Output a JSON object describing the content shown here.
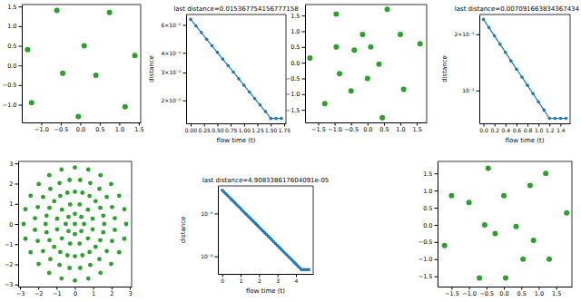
{
  "chart_data": [
    {
      "type": "scatter",
      "color": "#2ca02c",
      "marker": "circle",
      "x": [
        -1.35,
        -0.6,
        -1.25,
        -0.45,
        -0.05,
        0.1,
        0.4,
        0.75,
        1.15,
        1.4
      ],
      "values": [
        0.4,
        1.4,
        -0.95,
        -0.2,
        -1.3,
        0.5,
        -0.25,
        1.35,
        -1.05,
        0.25
      ],
      "xlim": [
        -1.5,
        1.55
      ],
      "ylim": [
        -1.45,
        1.55
      ],
      "xticks": [
        {
          "value": -1.0,
          "label": "−1.0"
        },
        {
          "value": -0.5,
          "label": "−0.5"
        },
        {
          "value": 0,
          "label": "0.0"
        },
        0.5,
        {
          "value": 1.0,
          "label": "1.0"
        },
        1.5
      ],
      "yticks": [
        {
          "value": -1.0,
          "label": "−1.0"
        },
        {
          "value": -0.5,
          "label": "−0.5"
        },
        {
          "value": 0,
          "label": "0.0"
        },
        0.5,
        {
          "value": 1.0,
          "label": "1.0"
        },
        1.5
      ]
    },
    {
      "type": "line",
      "title": "last distance=0.015367754156777158",
      "xlabel": "flow time (t)",
      "ylabel": "distance",
      "color": "#1f77b4",
      "marker": "circle",
      "log": "y",
      "x": [
        0,
        0.1,
        0.2,
        0.3,
        0.4,
        0.5,
        0.6,
        0.7,
        0.8,
        0.9,
        1.0,
        1.1,
        1.2,
        1.3,
        1.4,
        1.5,
        1.6,
        1.7
      ],
      "values": [
        0.065,
        0.0591,
        0.0537,
        0.0487,
        0.0443,
        0.0402,
        0.0365,
        0.0332,
        0.0302,
        0.0274,
        0.0249,
        0.0226,
        0.0205,
        0.0187,
        0.017,
        0.015367754156777158,
        0.015367754156777158,
        0.015367754156777158
      ],
      "xlim": [
        -0.085,
        1.785
      ],
      "ylim": [
        0.01432,
        0.0698
      ],
      "xticks": [
        {
          "value": 0,
          "label": "0.00"
        },
        0.25,
        {
          "value": 0.5,
          "label": "0.50"
        },
        0.75,
        {
          "value": 1.0,
          "label": "1.00"
        },
        1.25,
        {
          "value": 1.5,
          "label": "1.50"
        },
        1.75
      ],
      "yticks": [
        {
          "value": 0.02,
          "label": "2×10⁻²"
        },
        {
          "value": 0.03,
          "label": "3×10⁻²"
        },
        {
          "value": 0.04,
          "label": "4×10⁻²"
        },
        {
          "value": 0.06,
          "label": "6×10⁻²"
        }
      ]
    },
    {
      "type": "scatter",
      "color": "#2ca02c",
      "marker": "circle",
      "x": [
        -1.75,
        -1.3,
        -0.95,
        -0.95,
        -0.85,
        -0.5,
        -0.4,
        -0.15,
        0.0,
        0.1,
        0.35,
        0.45,
        0.6,
        1.0,
        1.1,
        1.6
      ],
      "values": [
        0.15,
        -1.3,
        1.55,
        0.5,
        -0.35,
        -0.9,
        0.4,
        0.9,
        -0.5,
        0.5,
        -0.05,
        -1.75,
        1.7,
        0.9,
        -0.85,
        0.6
      ],
      "xlim": [
        -1.9,
        1.8
      ],
      "ylim": [
        -1.9,
        1.85
      ],
      "xticks": [
        {
          "value": -1.5,
          "label": "−1.5"
        },
        {
          "value": -1.0,
          "label": "−1.0"
        },
        {
          "value": -0.5,
          "label": "−0.5"
        },
        {
          "value": 0,
          "label": "0.0"
        },
        0.5,
        {
          "value": 1.0,
          "label": "1.0"
        },
        1.5
      ],
      "yticks": [
        {
          "value": -1.5,
          "label": "−1.5"
        },
        {
          "value": -1.0,
          "label": "−1.0"
        },
        {
          "value": -0.5,
          "label": "−0.5"
        },
        {
          "value": 0,
          "label": "0.0"
        },
        0.5,
        {
          "value": 1.0,
          "label": "1.0"
        },
        1.5
      ]
    },
    {
      "type": "line",
      "title": "last distance=0.007091663834367434",
      "xlabel": "flow time (t)",
      "ylabel": "distance",
      "color": "#1f77b4",
      "marker": "circle",
      "log": "y",
      "x": [
        0,
        0.1,
        0.2,
        0.3,
        0.4,
        0.5,
        0.6,
        0.7,
        0.8,
        0.9,
        1.0,
        1.1,
        1.2,
        1.3,
        1.4,
        1.5
      ],
      "values": [
        0.024,
        0.0217,
        0.0196,
        0.0177,
        0.016,
        0.0144,
        0.013,
        0.0118,
        0.01065,
        0.00962,
        0.00869,
        0.00785,
        0.007091663834367434,
        0.007091663834367434,
        0.007091663834367434,
        0.007091663834367434
      ],
      "xlim": [
        -0.075,
        1.575
      ],
      "ylim": [
        0.00667,
        0.0255
      ],
      "xticks": [
        {
          "value": 0,
          "label": "0.0"
        },
        0.2,
        0.4,
        0.6,
        0.8,
        {
          "value": 1.0,
          "label": "1.0"
        },
        1.2,
        1.4
      ],
      "yticks": [
        {
          "value": 0.01,
          "label": "10⁻²"
        },
        {
          "value": 0.02,
          "label": "2×10⁻²"
        }
      ]
    },
    {
      "type": "scatter",
      "color": "#2ca02c",
      "marker": "circle",
      "x": [
        2.8,
        2.7,
        2.42,
        1.98,
        1.4,
        0.73,
        0,
        -0.73,
        -1.4,
        -1.98,
        -2.42,
        -2.7,
        -2.8,
        -2.7,
        -2.42,
        -1.98,
        -1.4,
        -0.73,
        0,
        0.73,
        1.4,
        1.98,
        2.42,
        2.7,
        2.18,
        2.03,
        1.74,
        1.34,
        0.84,
        0.29,
        -0.29,
        -0.84,
        -1.34,
        -1.74,
        -2.03,
        -2.18,
        -2.18,
        -2.03,
        -1.74,
        -1.34,
        -0.84,
        -0.29,
        0.29,
        0.84,
        1.34,
        1.74,
        2.03,
        2.18,
        1.6,
        1.55,
        1.39,
        1.13,
        0.8,
        0.41,
        0,
        -0.41,
        -0.8,
        -1.13,
        -1.39,
        -1.55,
        -1.6,
        -1.55,
        -1.39,
        -1.13,
        -0.8,
        -0.41,
        0,
        0.41,
        0.8,
        1.13,
        1.39,
        1.55,
        0.97,
        0.71,
        0.26,
        -0.26,
        -0.71,
        -0.97,
        -0.97,
        -0.71,
        -0.26,
        0.26,
        0.71,
        0.97,
        0.5,
        0.35,
        0,
        -0.35,
        -0.5,
        -0.35,
        0,
        0.35,
        0
      ],
      "values": [
        0,
        0.73,
        1.4,
        1.98,
        2.42,
        2.7,
        2.8,
        2.7,
        2.42,
        1.98,
        1.4,
        0.73,
        0,
        -0.73,
        -1.4,
        -1.98,
        -2.42,
        -2.7,
        -2.8,
        -2.7,
        -2.42,
        -1.98,
        -1.4,
        -0.73,
        0.29,
        0.84,
        1.34,
        1.74,
        2.03,
        2.18,
        2.18,
        2.03,
        1.74,
        1.34,
        0.84,
        0.29,
        -0.29,
        -0.84,
        -1.34,
        -1.74,
        -2.03,
        -2.18,
        -2.18,
        -2.03,
        -1.74,
        -1.34,
        -0.84,
        -0.29,
        0,
        0.41,
        0.8,
        1.13,
        1.39,
        1.55,
        1.6,
        1.55,
        1.39,
        1.13,
        0.8,
        0.41,
        0,
        -0.41,
        -0.8,
        -1.13,
        -1.39,
        -1.55,
        -1.6,
        -1.55,
        -1.39,
        -1.13,
        -0.8,
        -0.41,
        0.26,
        0.71,
        0.97,
        0.97,
        0.71,
        0.26,
        -0.26,
        -0.71,
        -0.97,
        -0.97,
        -0.71,
        -0.26,
        0,
        0.35,
        0.5,
        0.35,
        0,
        -0.35,
        -0.5,
        -0.35,
        0
      ],
      "xlim": [
        -3.1,
        3.1
      ],
      "ylim": [
        -3.1,
        3.1
      ],
      "xticks": [
        {
          "value": -3,
          "label": "−3"
        },
        {
          "value": -2,
          "label": "−2"
        },
        {
          "value": -1,
          "label": "−1"
        },
        0,
        1,
        2,
        3
      ],
      "yticks": [
        {
          "value": -3,
          "label": "−3"
        },
        {
          "value": -2,
          "label": "−2"
        },
        {
          "value": -1,
          "label": "−1"
        },
        0,
        1,
        2,
        3
      ]
    },
    {
      "type": "line",
      "title": "last distance=4.908338617604091e-05",
      "xlabel": "flow time (t)",
      "ylabel": "distance",
      "color": "#1f77b4",
      "marker": "circle",
      "log": "y",
      "x": [
        0,
        0.1,
        0.2,
        0.3,
        0.4,
        0.5,
        0.6,
        0.7,
        0.8,
        0.9,
        1.0,
        1.1,
        1.2,
        1.3,
        1.4,
        1.5,
        1.6,
        1.7,
        1.8,
        1.9,
        2.0,
        2.1,
        2.2,
        2.3,
        2.4,
        2.5,
        2.6,
        2.7,
        2.8,
        2.9,
        3.0,
        3.1,
        3.2,
        3.3,
        3.4,
        3.5,
        3.6,
        3.7,
        3.8,
        3.9,
        4.0,
        4.1,
        4.2,
        4.3,
        4.4,
        4.5,
        4.6,
        4.7
      ],
      "values": [
        0.0035,
        0.00317,
        0.00287,
        0.0026,
        0.00235,
        0.00213,
        0.00193,
        0.00175,
        0.00158,
        0.00143,
        0.0013,
        0.00117,
        0.00106,
        0.000963,
        0.000872,
        0.00079,
        0.000715,
        0.000648,
        0.000587,
        0.000531,
        0.000481,
        0.000435,
        0.000394,
        0.000357,
        0.000323,
        0.000293,
        0.000265,
        0.00024,
        0.000217,
        0.000197,
        0.000178,
        0.000161,
        0.000146,
        0.000132,
        0.00012,
        0.0001085,
        9.83e-05,
        8.9e-05,
        8.06e-05,
        7.3e-05,
        6.61e-05,
        5.98e-05,
        5.42e-05,
        4.908338617604091e-05,
        4.908338617604091e-05,
        4.908338617604091e-05,
        4.908338617604091e-05,
        4.908338617604091e-05
      ],
      "xlim": [
        -0.235,
        4.935
      ],
      "ylim": [
        3.9e-05,
        0.0044
      ],
      "xticks": [
        0,
        1,
        2,
        3,
        4
      ],
      "yticks": [
        {
          "value": 0.0001,
          "label": "10⁻⁴"
        },
        {
          "value": 0.001,
          "label": "10⁻³"
        }
      ]
    },
    {
      "type": "scatter",
      "color": "#2ca02c",
      "marker": "circle",
      "x": [
        -1.7,
        -1.5,
        -1.0,
        -0.55,
        -0.7,
        -0.45,
        -0.25,
        0.05,
        0.0,
        0.35,
        0.55,
        0.75,
        0.85,
        1.3,
        1.8,
        1.2
      ],
      "values": [
        -0.6,
        0.85,
        0.65,
        0.0,
        -1.55,
        1.65,
        -0.25,
        -1.55,
        0.85,
        -0.05,
        -1.0,
        1.15,
        -0.45,
        -1.0,
        0.35,
        1.5
      ],
      "xlim": [
        -1.9,
        1.95
      ],
      "ylim": [
        -1.8,
        1.85
      ],
      "xticks": [
        {
          "value": -1.5,
          "label": "−1.5"
        },
        {
          "value": -1.0,
          "label": "−1.0"
        },
        {
          "value": -0.5,
          "label": "−0.5"
        },
        {
          "value": 0,
          "label": "0.0"
        },
        0.5,
        {
          "value": 1.0,
          "label": "1.0"
        },
        1.5
      ],
      "yticks": [
        {
          "value": -1.5,
          "label": "−1.5"
        },
        {
          "value": -1.0,
          "label": "−1.0"
        },
        {
          "value": -0.5,
          "label": "−0.5"
        },
        {
          "value": 0,
          "label": "0.0"
        },
        0.5,
        {
          "value": 1.0,
          "label": "1.0"
        },
        1.5
      ]
    }
  ]
}
